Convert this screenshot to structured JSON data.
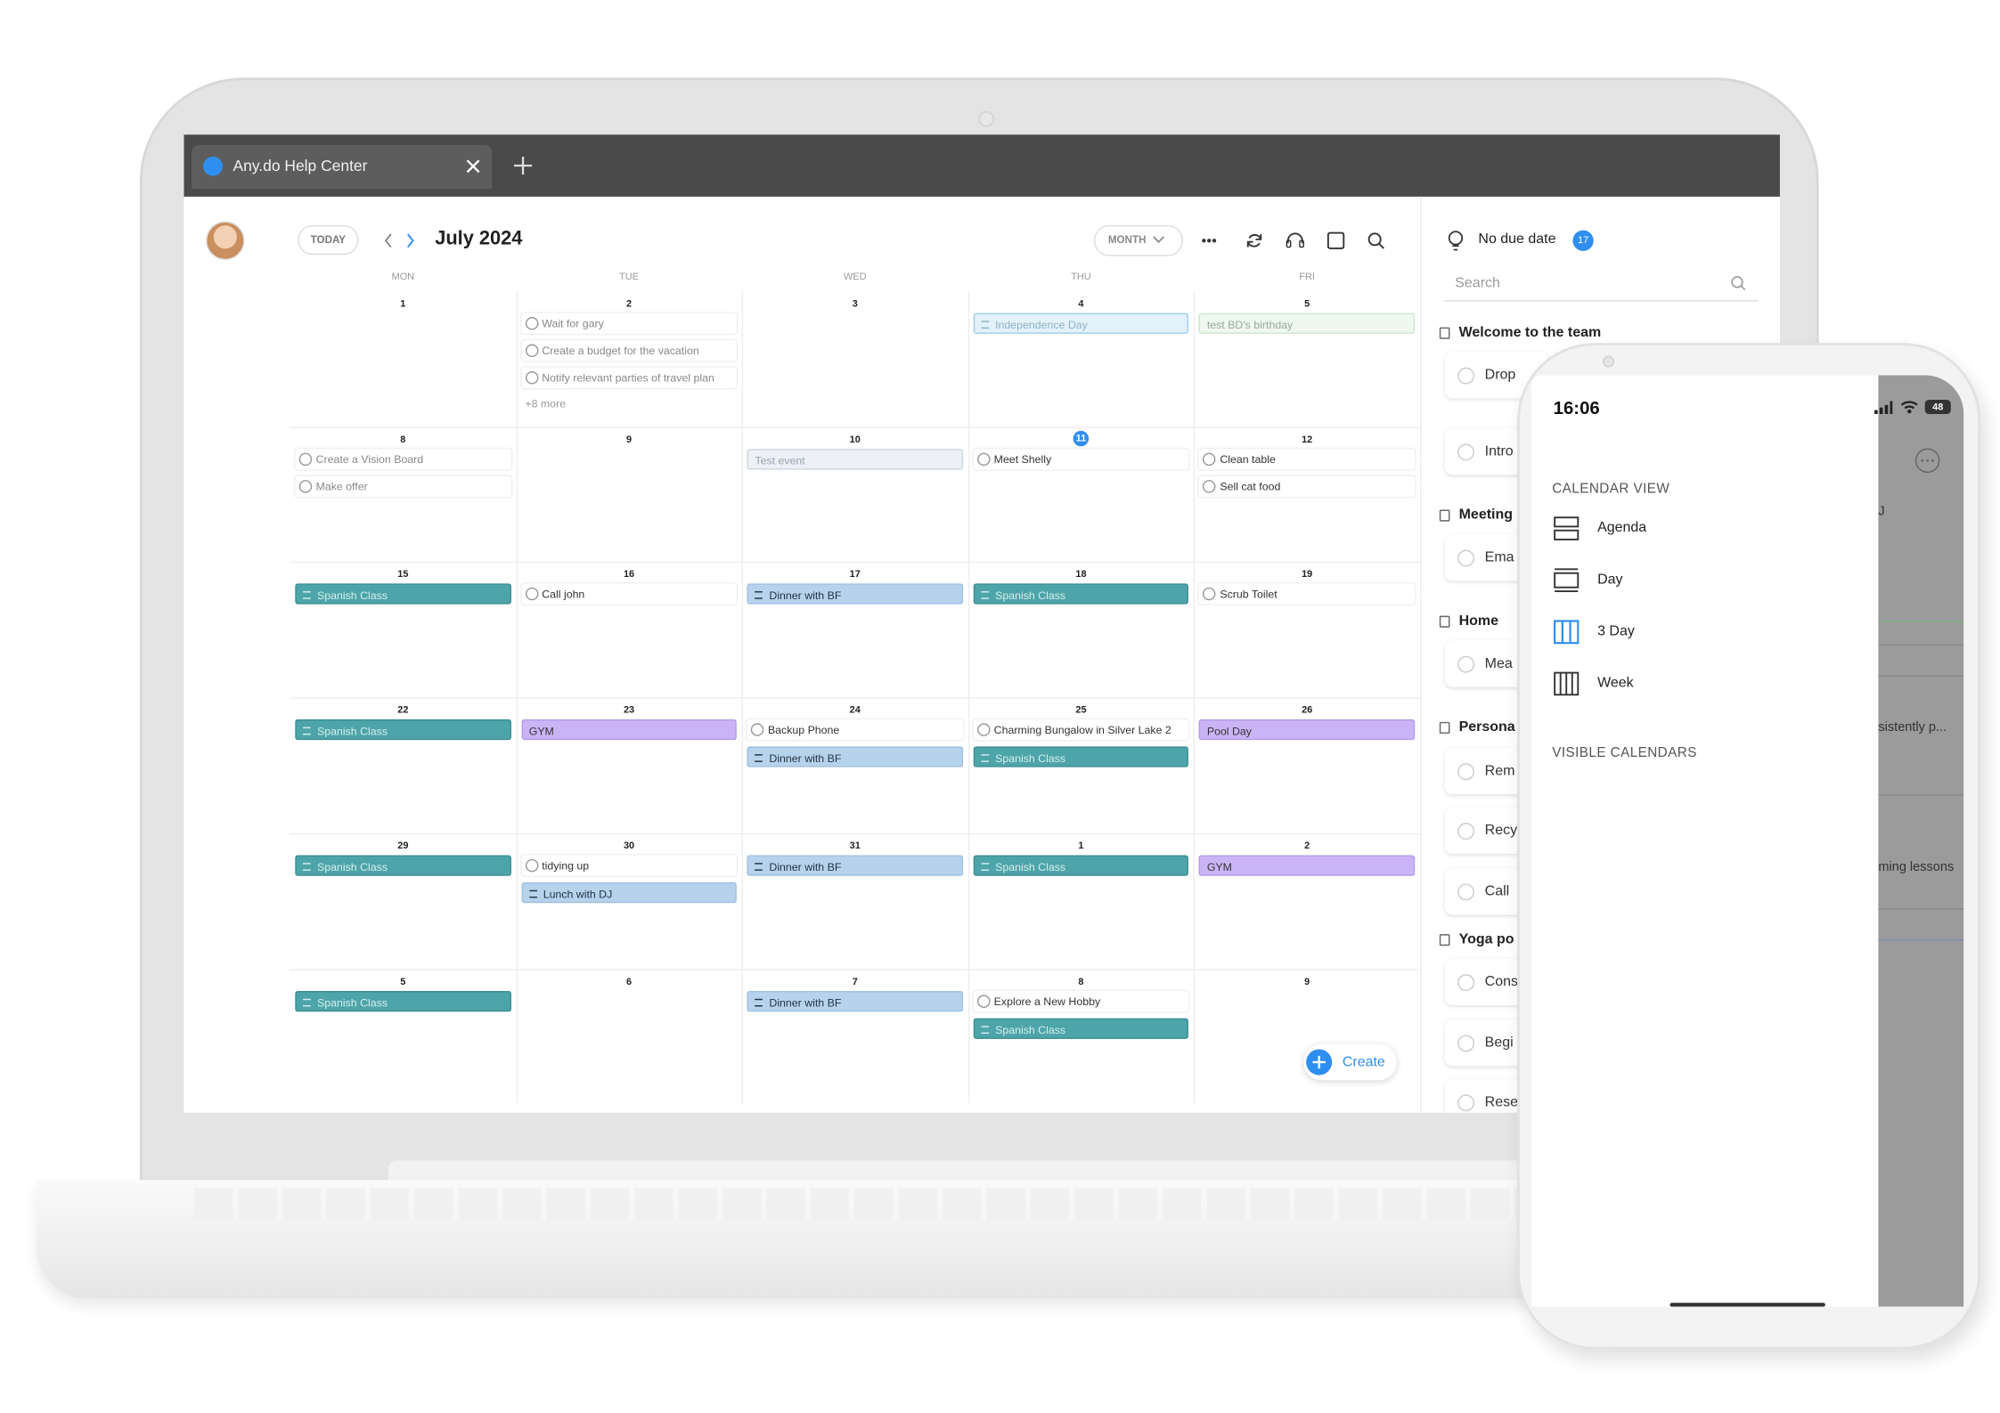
{
  "browser": {
    "tab_title": "Any.do Help Center"
  },
  "calendar": {
    "today_button": "TODAY",
    "month_title": "July 2024",
    "view_button": "MONTH",
    "weekdays": [
      "MON",
      "TUE",
      "WED",
      "THU",
      "FRI"
    ],
    "weeks": [
      {
        "days": [
          {
            "date": 1,
            "events": []
          },
          {
            "date": 2,
            "events": [
              {
                "text": "Wait for gary",
                "kind": "task-faded"
              },
              {
                "text": "Create a budget for the vacation",
                "kind": "task-faded"
              },
              {
                "text": "Notify relevant parties of travel plan",
                "kind": "task-faded"
              }
            ],
            "more": "+8 more"
          },
          {
            "date": 3,
            "events": []
          },
          {
            "date": 4,
            "events": [
              {
                "text": "Independence Day",
                "kind": "holiday"
              }
            ]
          },
          {
            "date": 5,
            "events": [
              {
                "text": "test BD's birthday",
                "kind": "birthday"
              }
            ]
          }
        ]
      },
      {
        "days": [
          {
            "date": 8,
            "events": [
              {
                "text": "Create a Vision Board",
                "kind": "task-faded"
              },
              {
                "text": "Make offer",
                "kind": "task-faded"
              }
            ]
          },
          {
            "date": 9,
            "events": []
          },
          {
            "date": 10,
            "events": [
              {
                "text": "Test event",
                "kind": "outline"
              }
            ]
          },
          {
            "date": 11,
            "today": true,
            "events": [
              {
                "text": "Meet Shelly",
                "kind": "task"
              }
            ]
          },
          {
            "date": 12,
            "events": [
              {
                "text": "Clean table",
                "kind": "task"
              },
              {
                "text": "Sell cat food",
                "kind": "task"
              }
            ]
          }
        ]
      },
      {
        "days": [
          {
            "date": 15,
            "events": [
              {
                "text": "Spanish Class",
                "kind": "teal"
              }
            ]
          },
          {
            "date": 16,
            "events": [
              {
                "text": "Call john",
                "kind": "task"
              }
            ]
          },
          {
            "date": 17,
            "events": [
              {
                "text": "Dinner with BF",
                "kind": "blue"
              }
            ]
          },
          {
            "date": 18,
            "events": [
              {
                "text": "Spanish Class",
                "kind": "teal"
              }
            ]
          },
          {
            "date": 19,
            "events": [
              {
                "text": "Scrub Toilet",
                "kind": "task"
              }
            ]
          }
        ]
      },
      {
        "days": [
          {
            "date": 22,
            "events": [
              {
                "text": "Spanish Class",
                "kind": "teal"
              }
            ]
          },
          {
            "date": 23,
            "events": [
              {
                "text": "GYM",
                "kind": "purple"
              }
            ]
          },
          {
            "date": 24,
            "events": [
              {
                "text": "Backup Phone",
                "kind": "task"
              },
              {
                "text": "Dinner with BF",
                "kind": "blue"
              }
            ]
          },
          {
            "date": 25,
            "events": [
              {
                "text": "Charming Bungalow in Silver Lake 2",
                "kind": "task"
              },
              {
                "text": "Spanish Class",
                "kind": "teal"
              }
            ]
          },
          {
            "date": 26,
            "events": [
              {
                "text": "Pool Day",
                "kind": "purple"
              }
            ]
          }
        ]
      },
      {
        "days": [
          {
            "date": 29,
            "events": [
              {
                "text": "Spanish Class",
                "kind": "teal"
              }
            ]
          },
          {
            "date": 30,
            "events": [
              {
                "text": "tidying up",
                "kind": "task"
              },
              {
                "text": "Lunch with DJ",
                "kind": "blue"
              }
            ]
          },
          {
            "date": 31,
            "events": [
              {
                "text": "Dinner with BF",
                "kind": "blue"
              }
            ]
          },
          {
            "date": 1,
            "events": [
              {
                "text": "Spanish Class",
                "kind": "teal"
              }
            ]
          },
          {
            "date": 2,
            "events": [
              {
                "text": "GYM",
                "kind": "purple"
              }
            ]
          }
        ]
      },
      {
        "days": [
          {
            "date": 5,
            "events": [
              {
                "text": "Spanish Class",
                "kind": "teal"
              }
            ]
          },
          {
            "date": 6,
            "events": []
          },
          {
            "date": 7,
            "events": [
              {
                "text": "Dinner with BF",
                "kind": "blue"
              }
            ]
          },
          {
            "date": 8,
            "events": [
              {
                "text": "Explore a New Hobby",
                "kind": "task"
              },
              {
                "text": "Spanish Class",
                "kind": "teal"
              }
            ]
          },
          {
            "date": 9,
            "events": []
          }
        ]
      }
    ],
    "create_button": "Create"
  },
  "sidebar": {
    "title": "No due date",
    "count": 17,
    "search_placeholder": "Search",
    "sections": [
      {
        "title": "Welcome to the team",
        "items": [
          "Drop",
          "Intro"
        ]
      },
      {
        "title": "Meeting",
        "items": [
          "Ema"
        ]
      },
      {
        "title": "Home",
        "items": [
          "Mea"
        ]
      },
      {
        "title": "Persona",
        "items": [
          "Rem",
          "Recy",
          "Call"
        ]
      },
      {
        "title": "Yoga po",
        "items": [
          "Cons",
          "Begi",
          "Rese"
        ]
      }
    ]
  },
  "phone": {
    "time": "16:06",
    "battery": "48",
    "calendar_view_heading": "CALENDAR VIEW",
    "view_options": [
      "Agenda",
      "Day",
      "3 Day",
      "Week"
    ],
    "visible_calendars_heading": "VISIBLE CALENDARS",
    "background_texts": [
      "J",
      "sistently p...",
      "ming lessons"
    ]
  }
}
